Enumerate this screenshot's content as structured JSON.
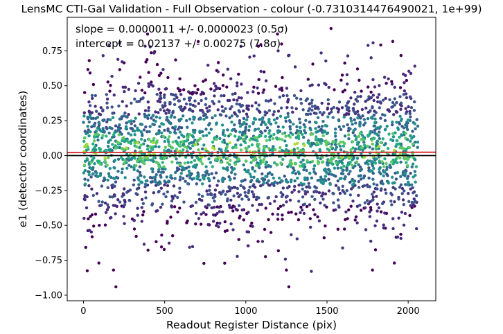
{
  "chart_data": {
    "type": "scatter",
    "title": "LensMC CTI-Gal Validation - Full Observation - colour (-0.7310314476490021, 1e+99)",
    "xlabel": "Readout Register Distance (pix)",
    "ylabel": "e1 (detector coordinates)",
    "xlim": [
      -100,
      2170
    ],
    "ylim": [
      -1.04,
      0.99
    ],
    "xticks": [
      0,
      500,
      1000,
      1500,
      2000
    ],
    "yticks": [
      -1.0,
      -0.75,
      -0.5,
      -0.25,
      0.0,
      0.25,
      0.5,
      0.75
    ],
    "xtick_labels": [
      "0",
      "500",
      "1000",
      "1500",
      "2000"
    ],
    "ytick_labels": [
      "−1.00",
      "−0.75",
      "−0.50",
      "−0.25",
      "0.00",
      "0.25",
      "0.50",
      "0.75"
    ],
    "grid": false,
    "colormap": "viridis",
    "point_density": "dense uniform cloud over x 0-2060, y concentrated between -0.5 and 0.6, density-colored",
    "x_range_of_points": [
      0,
      2060
    ],
    "sample_points": [
      [
        200,
        -0.94
      ],
      [
        1265,
        -0.94
      ],
      [
        395,
        0.87
      ],
      [
        1525,
        0.91
      ],
      [
        1195,
        0.87
      ],
      [
        185,
        -0.82
      ],
      [
        1250,
        -0.82
      ],
      [
        1780,
        -0.82
      ],
      [
        95,
        -0.77
      ],
      [
        1915,
        -0.77
      ]
    ],
    "annotations": [
      "slope = 0.0000011 +/- 0.0000023 (0.5σ)",
      "intercept = 0.02137 +/- 0.00275 (7.8σ)"
    ],
    "reference_lines": [
      {
        "name": "zero",
        "y": 0.0,
        "color": "#000000"
      },
      {
        "name": "fit",
        "slope": 1.1e-06,
        "intercept": 0.02137,
        "color": "#d62728"
      }
    ]
  }
}
